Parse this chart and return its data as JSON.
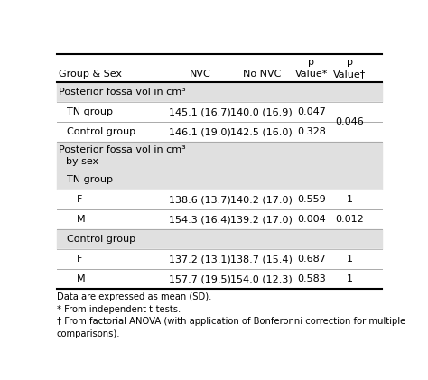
{
  "figsize": [
    4.74,
    4.21
  ],
  "dpi": 100,
  "header_line1": [
    "",
    "",
    "",
    "p",
    "p"
  ],
  "header_line2": [
    "Group & Sex",
    "NVC",
    "No NVC",
    "Value*",
    "Value†"
  ],
  "rows": [
    {
      "label": "Posterior fossa vol in cm³",
      "indent": 0,
      "bg": "#e0e0e0",
      "data": [
        "",
        "",
        "",
        ""
      ],
      "multiline": false
    },
    {
      "label": "TN group",
      "indent": 1,
      "bg": "#ffffff",
      "data": [
        "145.1 (16.7)",
        "140.0 (16.9)",
        "0.047",
        ""
      ],
      "multiline": false
    },
    {
      "label": "Control group",
      "indent": 1,
      "bg": "#ffffff",
      "data": [
        "146.1 (19.0)",
        "142.5 (16.0)",
        "0.328",
        ""
      ],
      "multiline": false
    },
    {
      "label": "Posterior fossa vol in cm³",
      "indent": 0,
      "bg": "#e0e0e0",
      "data": [
        "",
        "",
        "",
        ""
      ],
      "multiline": true,
      "label2": "by sex"
    },
    {
      "label": "TN group",
      "indent": 1,
      "bg": "#e0e0e0",
      "data": [
        "",
        "",
        "",
        ""
      ],
      "multiline": false
    },
    {
      "label": "F",
      "indent": 2,
      "bg": "#ffffff",
      "data": [
        "138.6 (13.7)",
        "140.2 (17.0)",
        "0.559",
        "1"
      ],
      "multiline": false
    },
    {
      "label": "M",
      "indent": 2,
      "bg": "#ffffff",
      "data": [
        "154.3 (16.4)",
        "139.2 (17.0)",
        "0.004",
        "0.012"
      ],
      "multiline": false
    },
    {
      "label": "Control group",
      "indent": 1,
      "bg": "#e0e0e0",
      "data": [
        "",
        "",
        "",
        ""
      ],
      "multiline": false
    },
    {
      "label": "F",
      "indent": 2,
      "bg": "#ffffff",
      "data": [
        "137.2 (13.1)",
        "138.7 (15.4)",
        "0.687",
        "1"
      ],
      "multiline": false
    },
    {
      "label": "M",
      "indent": 2,
      "bg": "#ffffff",
      "data": [
        "157.7 (19.5)",
        "154.0 (12.3)",
        "0.583",
        "1"
      ],
      "multiline": false
    }
  ],
  "p046_span_rows": [
    1,
    2
  ],
  "p046_value": "0.046",
  "footnotes": [
    "Data are expressed as mean (SD).",
    "* From independent t-tests.",
    "† From factorial ANOVA (with application of Bonferonni correction for multiple",
    "comparisons)."
  ],
  "separator_color": "#555555",
  "heavy_line_color": "#000000",
  "text_color": "#000000",
  "font_size": 8.0,
  "footnote_font_size": 7.2
}
